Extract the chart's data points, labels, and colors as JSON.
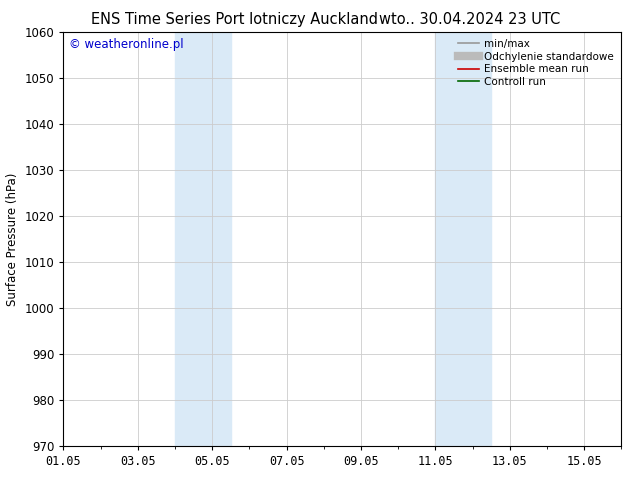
{
  "title": "ENS Time Series Port lotniczy Auckland",
  "title2": "wto.. 30.04.2024 23 UTC",
  "ylabel": "Surface Pressure (hPa)",
  "ylim": [
    970,
    1060
  ],
  "yticks": [
    970,
    980,
    990,
    1000,
    1010,
    1020,
    1030,
    1040,
    1050,
    1060
  ],
  "xtick_labels": [
    "01.05",
    "03.05",
    "05.05",
    "07.05",
    "09.05",
    "11.05",
    "13.05",
    "15.05"
  ],
  "xtick_positions": [
    0,
    2,
    4,
    6,
    8,
    10,
    12,
    14
  ],
  "xlim": [
    0,
    15
  ],
  "shade_bands": [
    {
      "x_start": 3.0,
      "x_end": 4.5
    },
    {
      "x_start": 10.0,
      "x_end": 11.5
    }
  ],
  "shade_color": "#daeaf7",
  "watermark_text": "© weatheronline.pl",
  "watermark_color": "#0000cc",
  "legend_entries": [
    {
      "label": "min/max",
      "color": "#999999",
      "lw": 1.2,
      "ls": "-"
    },
    {
      "label": "Odchylenie standardowe",
      "color": "#bbbbbb",
      "lw": 6,
      "ls": "-"
    },
    {
      "label": "Ensemble mean run",
      "color": "#cc0000",
      "lw": 1.2,
      "ls": "-"
    },
    {
      "label": "Controll run",
      "color": "#006600",
      "lw": 1.2,
      "ls": "-"
    }
  ],
  "bg_color": "#ffffff",
  "grid_color": "#cccccc",
  "title_fontsize": 10.5,
  "axis_fontsize": 8.5,
  "tick_fontsize": 8.5
}
